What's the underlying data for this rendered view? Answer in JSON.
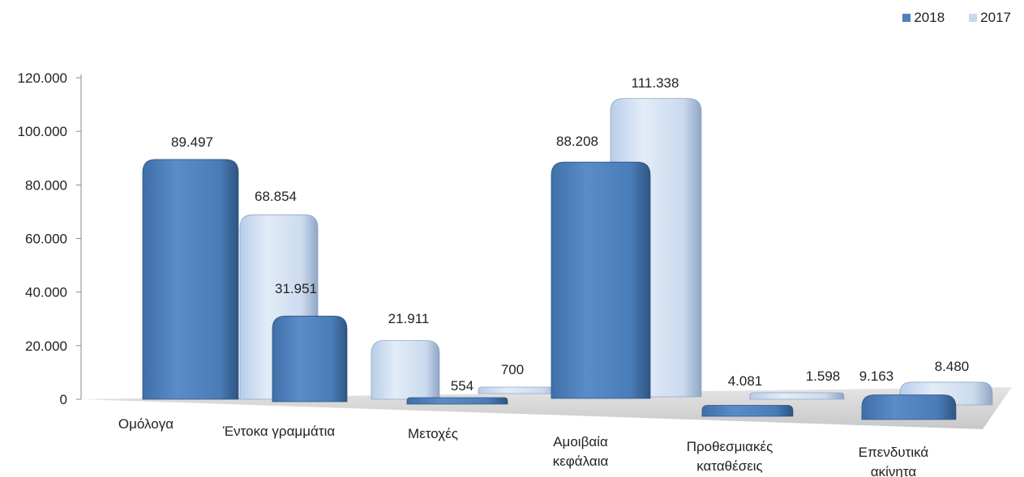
{
  "chart_data": {
    "type": "bar",
    "style": "3d-column",
    "categories": [
      [
        "Ομόλογα"
      ],
      [
        "Έντοκα γραμμάτια"
      ],
      [
        "Μετοχές"
      ],
      [
        "Αμοιβαία",
        "κεφάλαια"
      ],
      [
        "Προθεσμιακές",
        "καταθέσεις"
      ],
      [
        "Επενδυτικά",
        "ακίνητα"
      ]
    ],
    "series": [
      {
        "name": "2018",
        "values": [
          89497,
          31951,
          554,
          88208,
          4081,
          9163
        ],
        "labels": [
          "89.497",
          "31.951",
          "554",
          "88.208",
          "4.081",
          "9.163"
        ],
        "color": "#4f81bd"
      },
      {
        "name": "2017",
        "values": [
          68854,
          21911,
          700,
          111338,
          1598,
          8480
        ],
        "labels": [
          "68.854",
          "21.911",
          "700",
          "111.338",
          "1.598",
          "8.480"
        ],
        "color": "#c6d9f1"
      }
    ],
    "yticks": [
      "0",
      "20.000",
      "40.000",
      "60.000",
      "80.000",
      "100.000",
      "120.000"
    ],
    "ylim": [
      0,
      120000
    ],
    "legend_position": "top-right",
    "grid": false
  }
}
